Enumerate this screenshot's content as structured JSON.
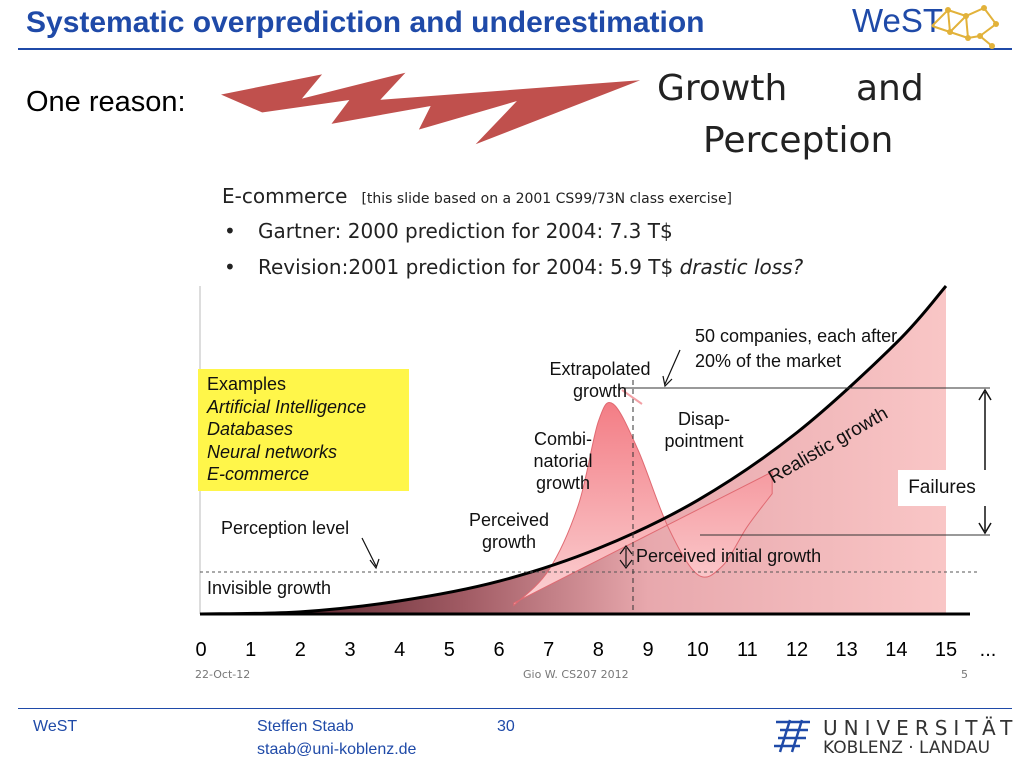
{
  "header": {
    "title": "Systematic overprediction and underestimation",
    "logo_text": "WeST"
  },
  "intro": {
    "text": "One reason:"
  },
  "image_heading": {
    "line1": "Growth      and",
    "line2": "Perception"
  },
  "ecommerce": {
    "title": "E-commerce",
    "note": "[this slide based on a 2001 CS99/73N class exercise]",
    "bullets": [
      {
        "symbol": "•",
        "text": "Gartner:  2000 prediction for 2004: 7.3 T$",
        "emphasis": ""
      },
      {
        "symbol": "•",
        "text": "Revision:2001 prediction for 2004: 5.9 T$ ",
        "emphasis": "drastic loss?"
      }
    ]
  },
  "examples": {
    "heading": "Examples",
    "items": [
      "Artificial Intelligence",
      "Databases",
      "Neural networks",
      "E-commerce"
    ]
  },
  "annotations": {
    "companies_line1": "50 companies, each after",
    "companies_line2": "20% of the market",
    "extrapolated_line1": "Extrapolated",
    "extrapolated_line2": "growth",
    "disappointment_line1": "Disap-",
    "disappointment_line2": "pointment",
    "combinatorial_line1": "Combi-",
    "combinatorial_line2": "natorial",
    "combinatorial_line3": "growth",
    "realistic": "Realistic growth",
    "failures": "Failures",
    "perceived_line1": "Perceived",
    "perceived_line2": "growth",
    "perception_level": "Perception level",
    "perceived_initial": "Perceived initial growth",
    "invisible": "Invisible  growth"
  },
  "chart_data": {
    "type": "area",
    "x_ticks": [
      "0",
      "1",
      "2",
      "3",
      "4",
      "5",
      "6",
      "7",
      "8",
      "9",
      "10",
      "11",
      "12",
      "13",
      "14",
      "15"
    ],
    "x_tail": "...",
    "xlim": [
      0,
      15
    ],
    "series": [
      {
        "x": [
          0,
          2,
          4,
          6,
          8,
          10,
          12,
          14,
          15
        ],
        "y": [
          0,
          0.1,
          0.6,
          1.5,
          3.0,
          5.2,
          8.3,
          12.4,
          15.0
        ]
      },
      {
        "x": [
          6.3,
          7,
          7.6,
          8,
          8.3,
          8.8,
          9.4,
          10,
          10.5,
          11,
          11.5
        ],
        "y": [
          0.4,
          2,
          5,
          8.8,
          9.6,
          7.5,
          4,
          1.8,
          2.2,
          4,
          5.5
        ]
      }
    ]
  },
  "slide_footer": {
    "date": "22-Oct-12",
    "credit": "Gio W. CS207  2012",
    "page": "5"
  },
  "footer": {
    "org": "WeST",
    "author": "Steffen Staab",
    "email": "staab@uni-koblenz.de",
    "page": "30",
    "uni_line1": "UNIVERSITÄT",
    "uni_line2": "KOBLENZ · LANDAU"
  },
  "colors": {
    "title_blue": "#1f4aa8",
    "arrow_red": "#c0504d",
    "example_yellow": "#fff64a",
    "area_pink": "#f7b5b5"
  }
}
